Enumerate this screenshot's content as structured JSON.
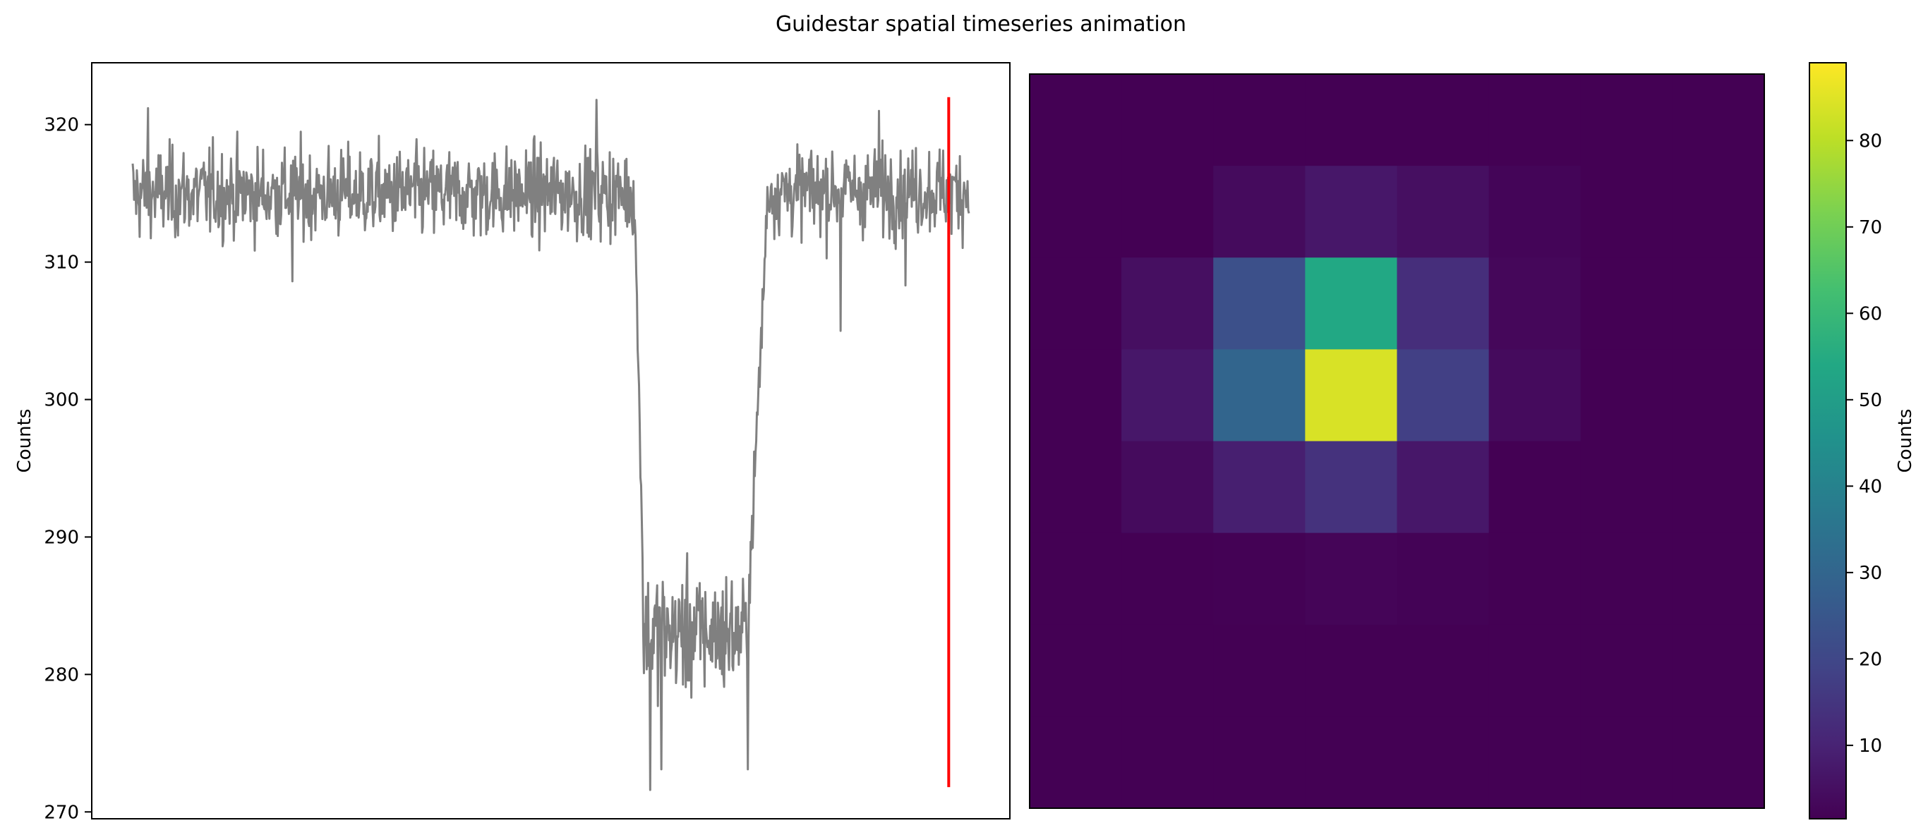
{
  "figure": {
    "title": "Guidestar spatial timeseries animation"
  },
  "chart_data": [
    {
      "type": "line",
      "title": "",
      "xlabel": "",
      "ylabel": "Counts",
      "ylim": [
        269.5,
        324.5
      ],
      "yticks": [
        270,
        280,
        290,
        300,
        310,
        320
      ],
      "xticks": [],
      "grid": false,
      "n_points": 1200,
      "series": [
        {
          "color": "#808080",
          "segments": [
            {
              "x_start": 0,
              "x_end": 720,
              "level": 315.0,
              "noise": 2.3
            },
            {
              "x_start": 720,
              "x_end": 732,
              "from": 313.5,
              "to": 287.0,
              "noise": 1.0
            },
            {
              "x_start": 732,
              "x_end": 880,
              "level": 283.0,
              "noise": 3.2
            },
            {
              "x_start": 880,
              "x_end": 910,
              "from": 282.0,
              "to": 314.0,
              "noise": 1.5
            },
            {
              "x_start": 910,
              "x_end": 1200,
              "level": 315.2,
              "noise": 2.2
            }
          ],
          "spikes": [
            {
              "x": 22,
              "y": 321.2
            },
            {
              "x": 229,
              "y": 308.6
            },
            {
              "x": 665,
              "y": 321.8
            },
            {
              "x": 742,
              "y": 271.6
            },
            {
              "x": 758,
              "y": 273.1
            },
            {
              "x": 882,
              "y": 273.1
            },
            {
              "x": 1015,
              "y": 305.0
            },
            {
              "x": 1108,
              "y": 308.3
            },
            {
              "x": 1070,
              "y": 321.0
            }
          ]
        }
      ],
      "marker_line": {
        "x": 1170,
        "y_from": 271.8,
        "y_to": 322.0,
        "color": "#ff0000"
      }
    },
    {
      "type": "heatmap",
      "title": "",
      "xticks": [],
      "yticks": [],
      "rows": 8,
      "cols": 8,
      "values": [
        [
          1.5,
          1.5,
          1.5,
          1.5,
          1.5,
          1.5,
          1.5,
          1.5
        ],
        [
          1.5,
          1.5,
          4.0,
          7.0,
          5.0,
          2.5,
          1.5,
          1.5
        ],
        [
          1.5,
          5.0,
          23.0,
          54.0,
          13.0,
          3.0,
          1.5,
          1.5
        ],
        [
          1.5,
          7.0,
          30.0,
          84.0,
          18.0,
          4.0,
          1.5,
          1.5
        ],
        [
          1.5,
          4.0,
          9.0,
          14.0,
          7.0,
          1.5,
          1.5,
          1.5
        ],
        [
          1.5,
          1.5,
          1.8,
          2.6,
          2.0,
          1.5,
          1.5,
          1.5
        ],
        [
          1.5,
          1.5,
          1.5,
          1.5,
          1.5,
          1.5,
          1.5,
          1.5
        ],
        [
          1.5,
          1.5,
          1.5,
          1.5,
          1.5,
          1.5,
          1.5,
          1.5
        ]
      ],
      "colormap": "viridis",
      "colorbar": {
        "label": "Counts",
        "vmin": 1.5,
        "vmax": 89.0,
        "ticks": [
          10,
          20,
          30,
          40,
          50,
          60,
          70,
          80
        ]
      }
    }
  ]
}
